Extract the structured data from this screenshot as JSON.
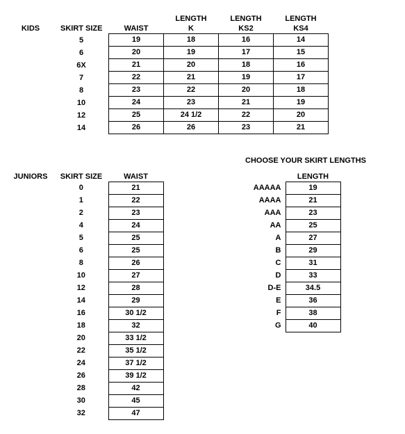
{
  "kids": {
    "title": "KIDS",
    "headers": {
      "skirt_size": "SKIRT SIZE",
      "waist": "WAIST",
      "length_top": "LENGTH",
      "k": "K",
      "ks2": "KS2",
      "ks4": "KS4"
    },
    "rows": [
      {
        "size": "5",
        "waist": "19",
        "k": "18",
        "ks2": "16",
        "ks4": "14"
      },
      {
        "size": "6",
        "waist": "20",
        "k": "19",
        "ks2": "17",
        "ks4": "15"
      },
      {
        "size": "6X",
        "waist": "21",
        "k": "20",
        "ks2": "18",
        "ks4": "16"
      },
      {
        "size": "7",
        "waist": "22",
        "k": "21",
        "ks2": "19",
        "ks4": "17"
      },
      {
        "size": "8",
        "waist": "23",
        "k": "22",
        "ks2": "20",
        "ks4": "18"
      },
      {
        "size": "10",
        "waist": "24",
        "k": "23",
        "ks2": "21",
        "ks4": "19"
      },
      {
        "size": "12",
        "waist": "25",
        "k": "24  1/2",
        "ks2": "22",
        "ks4": "20"
      },
      {
        "size": "14",
        "waist": "26",
        "k": "26",
        "ks2": "23",
        "ks4": "21"
      }
    ]
  },
  "choose_title": "CHOOSE YOUR SKIRT LENGTHS",
  "juniors": {
    "title": "JUNIORS",
    "headers": {
      "skirt_size": "SKIRT SIZE",
      "waist": "WAIST"
    },
    "rows": [
      {
        "size": "0",
        "waist": "21"
      },
      {
        "size": "1",
        "waist": "22"
      },
      {
        "size": "2",
        "waist": "23"
      },
      {
        "size": "4",
        "waist": "24"
      },
      {
        "size": "5",
        "waist": "25"
      },
      {
        "size": "6",
        "waist": "25"
      },
      {
        "size": "8",
        "waist": "26"
      },
      {
        "size": "10",
        "waist": "27"
      },
      {
        "size": "12",
        "waist": "28"
      },
      {
        "size": "14",
        "waist": "29"
      },
      {
        "size": "16",
        "waist": "30  1/2"
      },
      {
        "size": "18",
        "waist": "32"
      },
      {
        "size": "20",
        "waist": "33  1/2"
      },
      {
        "size": "22",
        "waist": "35  1/2"
      },
      {
        "size": "24",
        "waist": "37  1/2"
      },
      {
        "size": "26",
        "waist": "39  1/2"
      },
      {
        "size": "28",
        "waist": "42"
      },
      {
        "size": "30",
        "waist": "45"
      },
      {
        "size": "32",
        "waist": "47"
      }
    ]
  },
  "lengths": {
    "header": "LENGTH",
    "rows": [
      {
        "code": "AAAAA",
        "len": "19"
      },
      {
        "code": "AAAA",
        "len": "21"
      },
      {
        "code": "AAA",
        "len": "23"
      },
      {
        "code": "AA",
        "len": "25"
      },
      {
        "code": "A",
        "len": "27"
      },
      {
        "code": "B",
        "len": "29"
      },
      {
        "code": "C",
        "len": "31"
      },
      {
        "code": "D",
        "len": "33"
      },
      {
        "code": "D-E",
        "len": "34.5"
      },
      {
        "code": "E",
        "len": "36"
      },
      {
        "code": "F",
        "len": "38"
      },
      {
        "code": "G",
        "len": "40"
      }
    ]
  }
}
